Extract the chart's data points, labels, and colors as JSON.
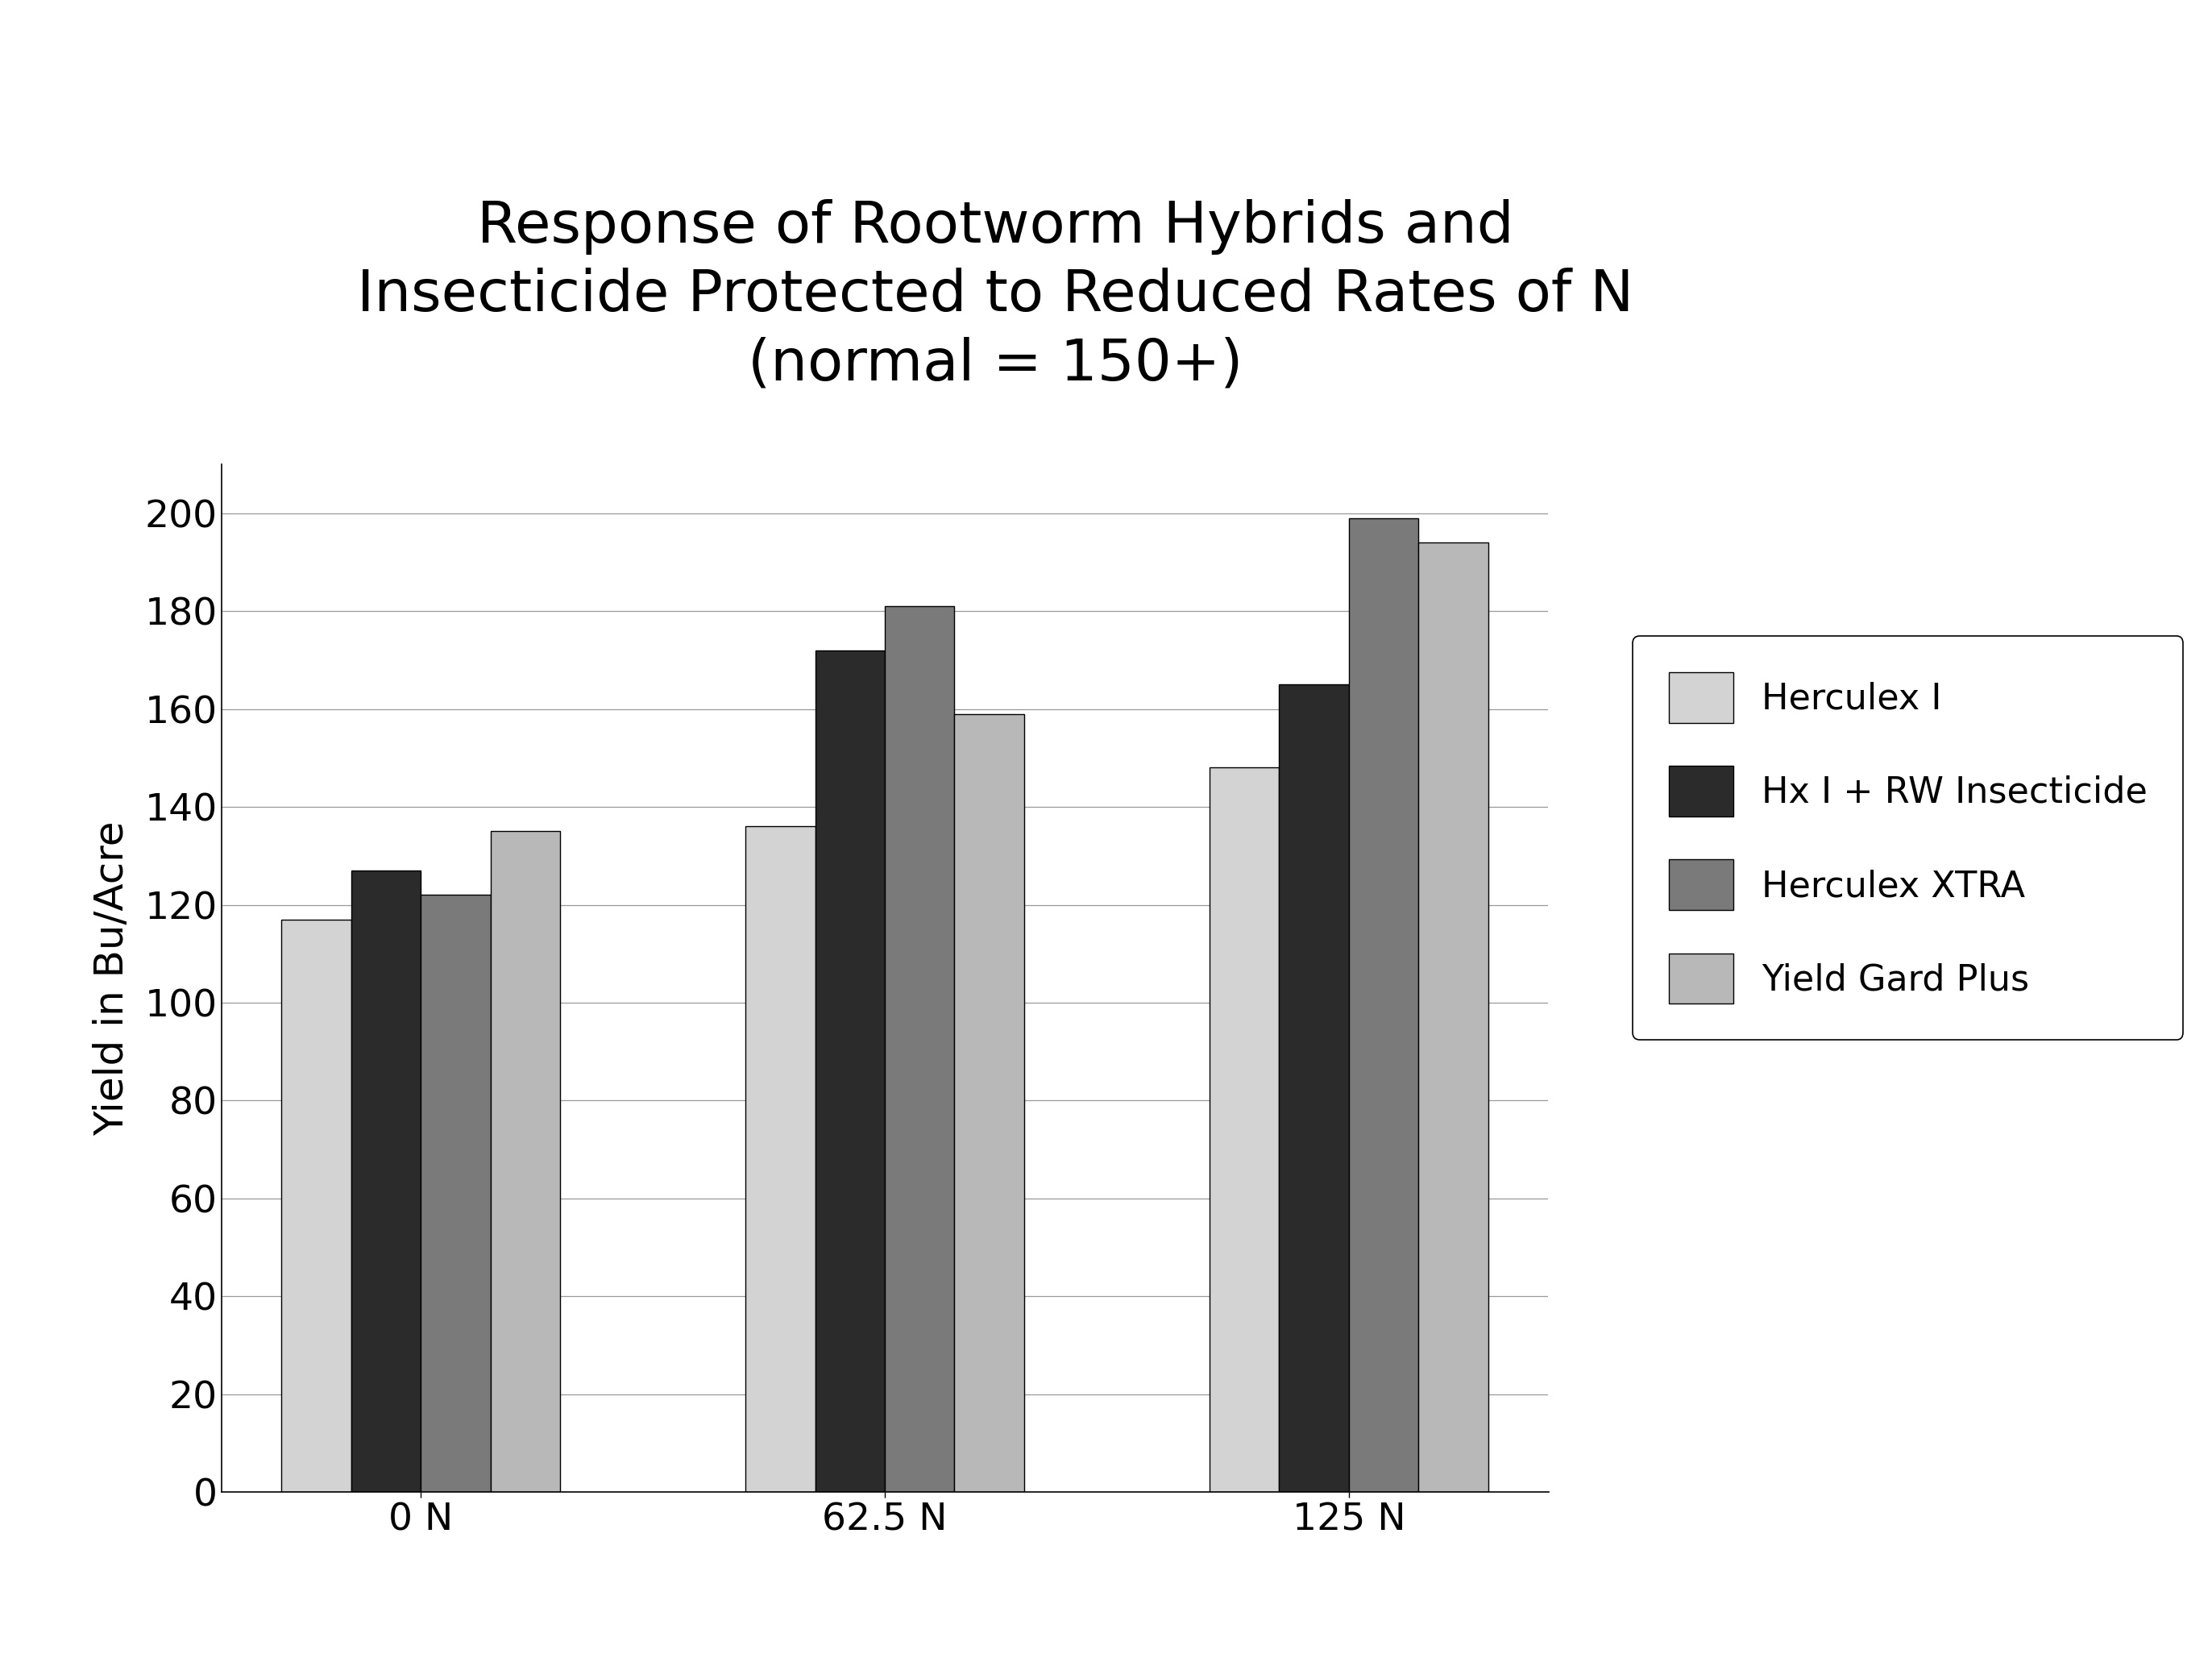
{
  "title": "Response of Rootworm Hybrids and\nInsecticide Protected to Reduced Rates of N\n(normal = 150+)",
  "ylabel": "Yield in Bu/Acre",
  "xlabel": "",
  "categories": [
    "0 N",
    "62.5 N",
    "125 N"
  ],
  "series": {
    "Herculex I": [
      117,
      136,
      148
    ],
    "Hx I + RW Insecticide": [
      127,
      172,
      165
    ],
    "Herculex XTRA": [
      122,
      181,
      199
    ],
    "Yield Gard Plus": [
      135,
      159,
      194
    ]
  },
  "colors": {
    "Herculex I": "#d3d3d3",
    "Hx I + RW Insecticide": "#2b2b2b",
    "Herculex XTRA": "#7a7a7a",
    "Yield Gard Plus": "#b8b8b8"
  },
  "ylim": [
    0,
    210
  ],
  "yticks": [
    0,
    20,
    40,
    60,
    80,
    100,
    120,
    140,
    160,
    180,
    200
  ],
  "title_fontsize": 52,
  "axis_label_fontsize": 36,
  "tick_fontsize": 34,
  "legend_fontsize": 32,
  "bar_width": 0.15,
  "background_color": "#ffffff",
  "grid_color": "#999999"
}
